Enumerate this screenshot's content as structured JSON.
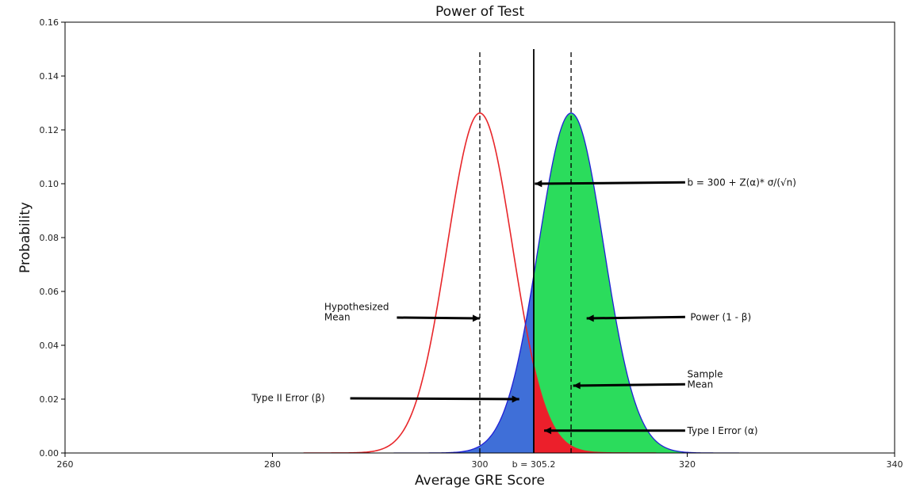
{
  "chart_data": {
    "type": "area",
    "title": "Power of Test",
    "xlabel": "Average GRE Score",
    "ylabel": "Probability",
    "xlim": [
      260,
      340
    ],
    "ylim": [
      0,
      0.16
    ],
    "x_ticks": [
      260,
      280,
      300,
      320,
      340
    ],
    "y_ticks": [
      0.0,
      0.02,
      0.04,
      0.06,
      0.08,
      0.1,
      0.12,
      0.14,
      0.16
    ],
    "x_tick_labels": [
      "260",
      "280",
      "300",
      "320",
      "340"
    ],
    "y_tick_labels": [
      "0.00",
      "0.02",
      "0.04",
      "0.06",
      "0.08",
      "0.10",
      "0.12",
      "0.14",
      "0.16"
    ],
    "grid": false,
    "series": [
      {
        "role": "null-distribution",
        "mean": 300,
        "sd": 3.16,
        "x_range": [
          283,
          317
        ],
        "color": "#e8262a"
      },
      {
        "role": "alternative-distribution",
        "mean": 308.8,
        "sd": 3.16,
        "x_range": [
          291.7,
          325
        ],
        "color": "#1f1fd6"
      }
    ],
    "regions": [
      {
        "role": "type-ii-error",
        "from": 291.7,
        "to": 305.2,
        "color": "#3f6fd8"
      },
      {
        "role": "power",
        "from": 305.2,
        "to": 325,
        "color": "#2bdc5c"
      },
      {
        "role": "type-i-error",
        "from": 305.2,
        "to": 317,
        "color": "#ec1f2b"
      }
    ],
    "vlines": [
      {
        "role": "hypothesized-mean-line",
        "x": 300,
        "y_top": 0.15,
        "style": "dashed"
      },
      {
        "role": "critical-value-line",
        "x": 305.2,
        "y_top": 0.15,
        "style": "solid"
      },
      {
        "role": "sample-mean-line",
        "x": 308.8,
        "y_top": 0.15,
        "style": "dashed"
      }
    ],
    "critical_label": "b = 305.2",
    "annotations": [
      {
        "role": "formula-annotation",
        "lines": [
          "b = 300 + Z(α)* σ/(√n)"
        ],
        "text_x": 320,
        "text_y": 0.1005,
        "arrow_from": [
          319.8,
          0.1005
        ],
        "arrow_to": [
          305.3,
          0.1
        ]
      },
      {
        "role": "hypothesized-mean-annotation",
        "lines": [
          "Hypothesized",
          " Mean"
        ],
        "text_x": 285,
        "text_y": 0.0525,
        "arrow_from": [
          292,
          0.0503
        ],
        "arrow_to": [
          300,
          0.05
        ]
      },
      {
        "role": "power-annotation",
        "lines": [
          "Power (1 - β)"
        ],
        "text_x": 320.3,
        "text_y": 0.0505,
        "arrow_from": [
          319.8,
          0.0505
        ],
        "arrow_to": [
          310.3,
          0.05
        ]
      },
      {
        "role": "sample-mean-annotation",
        "lines": [
          "Sample",
          " Mean"
        ],
        "text_x": 320,
        "text_y": 0.0275,
        "arrow_from": [
          319.8,
          0.0255
        ],
        "arrow_to": [
          309,
          0.025
        ]
      },
      {
        "role": "type-ii-error-annotation",
        "lines": [
          "Type II Error (β)"
        ],
        "text_x": 278,
        "text_y": 0.0205,
        "arrow_from": [
          287.5,
          0.0203
        ],
        "arrow_to": [
          303.8,
          0.02
        ]
      },
      {
        "role": "type-i-error-annotation",
        "lines": [
          "Type I Error (α)"
        ],
        "text_x": 320,
        "text_y": 0.0083,
        "arrow_from": [
          319.8,
          0.0083
        ],
        "arrow_to": [
          306.2,
          0.0083
        ]
      }
    ]
  }
}
